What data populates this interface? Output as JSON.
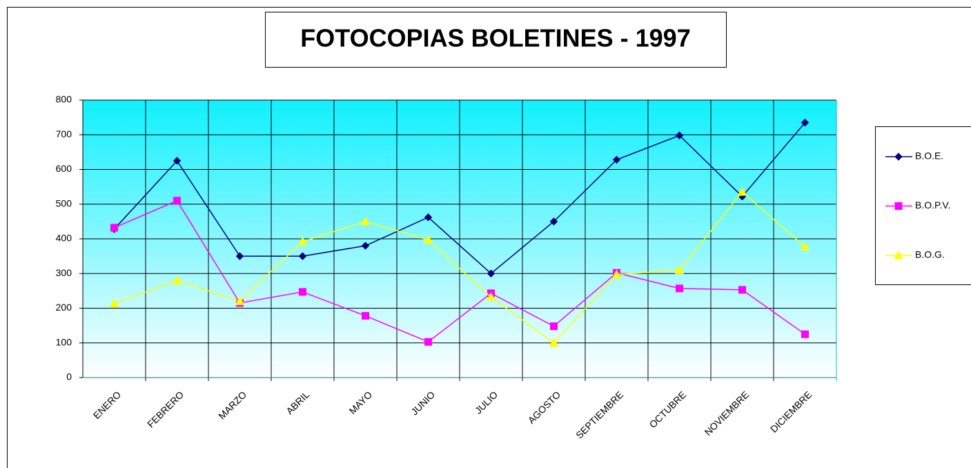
{
  "chart_data": {
    "type": "line",
    "title": "FOTOCOPIAS BOLETINES - 1997",
    "categories": [
      "ENERO",
      "FEBRERO",
      "MARZO",
      "ABRIL",
      "MAYO",
      "JUNIO",
      "JULIO",
      "AGOSTO",
      "SEPTIEMBRE",
      "OCTUBRE",
      "NOVIEMBRE",
      "DICIEMBRE"
    ],
    "series": [
      {
        "name": "B.O.E.",
        "color": "#000080",
        "marker": "diamond",
        "values": [
          428,
          625,
          350,
          350,
          380,
          462,
          300,
          450,
          628,
          698,
          522,
          735
        ]
      },
      {
        "name": "B.O.P.V.",
        "color": "#ff00ff",
        "marker": "square",
        "values": [
          432,
          510,
          215,
          247,
          178,
          103,
          243,
          148,
          302,
          257,
          253,
          125
        ]
      },
      {
        "name": "B.O.G.",
        "color": "#ffff00",
        "marker": "triangle",
        "values": [
          213,
          280,
          220,
          392,
          450,
          397,
          232,
          100,
          297,
          310,
          535,
          377
        ]
      }
    ],
    "ylim": [
      0,
      800
    ],
    "yticks": [
      0,
      100,
      200,
      300,
      400,
      500,
      600,
      700,
      800
    ],
    "grid": true,
    "legend": "right"
  }
}
